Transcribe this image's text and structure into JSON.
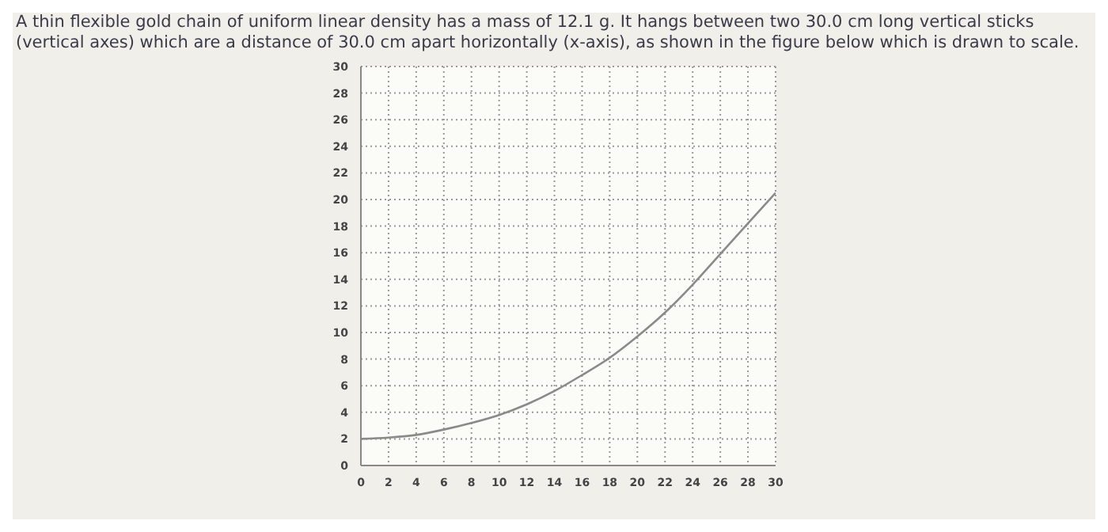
{
  "chart_data": {
    "type": "line",
    "title": "A thin flexible gold chain of uniform linear density has a mass of 12.1 g. It hangs between two 30.0 cm long vertical sticks (vertical axes) which are a distance of 30.0 cm apart horizontally (x-axis), as shown in the figure below which is drawn to scale.",
    "x": [
      0,
      2,
      4,
      6,
      8,
      10,
      12,
      14,
      16,
      18,
      20,
      22,
      24,
      26,
      28,
      30
    ],
    "series": [
      {
        "color": "#8a8a8a",
        "values": [
          2,
          2.1,
          2.3,
          2.7,
          3.2,
          3.8,
          4.6,
          5.6,
          6.8,
          8.1,
          9.7,
          11.5,
          13.6,
          15.9,
          18.2,
          20.5
        ]
      }
    ],
    "xlim": [
      0,
      30
    ],
    "xticks": [
      0,
      2,
      4,
      6,
      8,
      10,
      12,
      14,
      16,
      18,
      20,
      22,
      24,
      26,
      28,
      30
    ],
    "ylim": [
      0,
      30
    ],
    "yticks": [
      0,
      2,
      4,
      6,
      8,
      10,
      12,
      14,
      16,
      18,
      20,
      22,
      24,
      26,
      28,
      30
    ],
    "grid": true,
    "marker": "none",
    "line_style": "solid"
  }
}
